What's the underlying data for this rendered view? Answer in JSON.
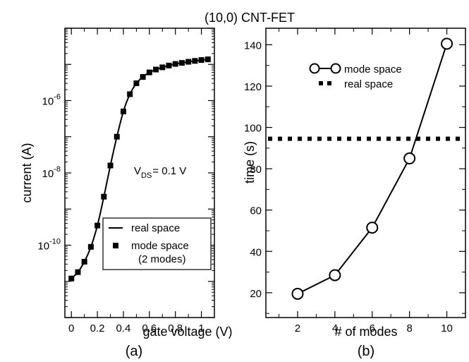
{
  "figure": {
    "title": "(10,0) CNT-FET",
    "panel_a_label": "(a)",
    "panel_b_label": "(b)"
  },
  "chart_data": [
    {
      "type": "line",
      "panel": "(a)",
      "xlabel": "gate voltage (V)",
      "ylabel": "current (A)",
      "xlim": [
        -0.05,
        1.1
      ],
      "ylim": [
        1e-12,
        0.0001
      ],
      "yscale": "log",
      "grid": false,
      "xticks": [
        0,
        0.2,
        0.4,
        0.6,
        0.8,
        1
      ],
      "xtick_labels": [
        "0",
        "0.2",
        "0.4",
        "0.6",
        "0.8",
        "1"
      ],
      "yticks": [
        1e-10,
        1e-08,
        1e-06
      ],
      "ytick_labels": [
        {
          "base": "10",
          "exp": "-10"
        },
        {
          "base": "10",
          "exp": "-8"
        },
        {
          "base": "10",
          "exp": "-6"
        }
      ],
      "annotation": {
        "main": "V",
        "sub": "DS",
        "rest": "= 0.1 V"
      },
      "legend_position": "bottom-right",
      "series": [
        {
          "name": "real space",
          "style": "line",
          "color": "#000000",
          "x": [
            0,
            0.05,
            0.1,
            0.15,
            0.2,
            0.25,
            0.3,
            0.35,
            0.4,
            0.45,
            0.5,
            0.55,
            0.6,
            0.65,
            0.7,
            0.75,
            0.8,
            0.85,
            0.9,
            0.95,
            1.0,
            1.05
          ],
          "y": [
            1.2e-11,
            1.8e-11,
            3.5e-11,
            9e-11,
            3.5e-10,
            2.2e-09,
            1.6e-08,
            1e-07,
            5e-07,
            1.5e-06,
            3e-06,
            4.5e-06,
            6e-06,
            7.2e-06,
            8.3e-06,
            9.3e-06,
            1.03e-05,
            1.1e-05,
            1.18e-05,
            1.25e-05,
            1.32e-05,
            1.38e-05
          ]
        },
        {
          "name": "mode space",
          "name_line2": "(2 modes)",
          "style": "square-marker",
          "color": "#000000",
          "x": [
            0,
            0.05,
            0.1,
            0.15,
            0.2,
            0.25,
            0.3,
            0.35,
            0.4,
            0.45,
            0.5,
            0.55,
            0.6,
            0.65,
            0.7,
            0.75,
            0.8,
            0.85,
            0.9,
            0.95,
            1.0,
            1.05
          ],
          "y": [
            1.2e-11,
            1.8e-11,
            3.5e-11,
            9e-11,
            3.5e-10,
            2.2e-09,
            1.6e-08,
            1e-07,
            5e-07,
            1.5e-06,
            3e-06,
            4.5e-06,
            6e-06,
            7.2e-06,
            8.3e-06,
            9.3e-06,
            1.03e-05,
            1.1e-05,
            1.18e-05,
            1.25e-05,
            1.32e-05,
            1.38e-05
          ]
        }
      ]
    },
    {
      "type": "line",
      "panel": "(b)",
      "xlabel": "# of modes",
      "ylabel": "time (s)",
      "xlim": [
        0.3,
        11
      ],
      "ylim": [
        8,
        148
      ],
      "grid": false,
      "xticks": [
        2,
        4,
        6,
        8,
        10
      ],
      "xtick_labels": [
        "2",
        "4",
        "6",
        "8",
        "10"
      ],
      "yticks": [
        20,
        40,
        60,
        80,
        100,
        120,
        140
      ],
      "ytick_labels": [
        "20",
        "40",
        "60",
        "80",
        "100",
        "120",
        "140"
      ],
      "legend_position": "top-left",
      "series": [
        {
          "name": "mode space",
          "style": "line-open-circle",
          "color": "#000000",
          "x": [
            2,
            4,
            6,
            8,
            10
          ],
          "y": [
            19.5,
            28.5,
            51.5,
            85,
            140.5
          ]
        },
        {
          "name": "real space",
          "style": "dotted-horizontal",
          "color": "#000000",
          "x": [
            0.3,
            11
          ],
          "y": [
            94.5,
            94.5
          ]
        }
      ]
    }
  ]
}
